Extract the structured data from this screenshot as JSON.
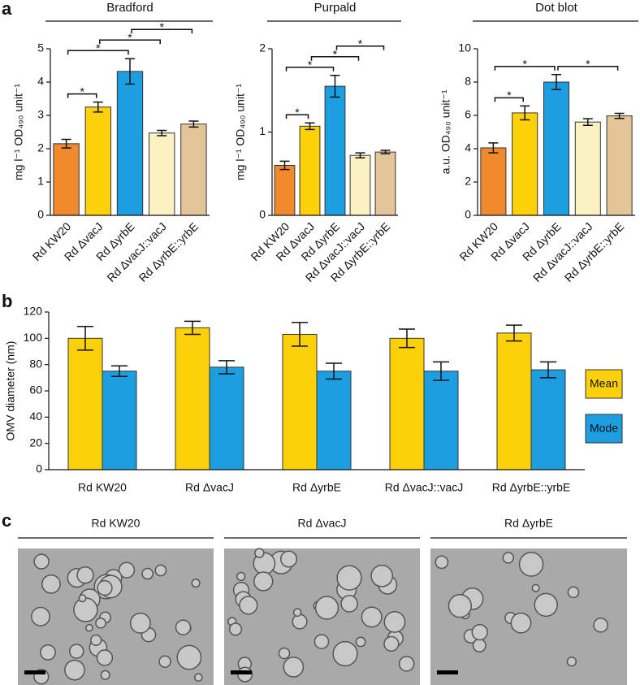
{
  "panel_labels": [
    "a",
    "b",
    "c"
  ],
  "chart_data": [
    {
      "type": "bar",
      "title": "Bradford",
      "ylabel": "mg l⁻¹ OD₄₉₀ unit⁻¹",
      "categories": [
        "Rd KW20",
        "Rd ΔvacJ",
        "Rd ΔyrbE",
        "Rd ΔvacJ::vacJ",
        "Rd ΔyrbE::yrbE"
      ],
      "values": [
        2.15,
        3.25,
        4.32,
        2.47,
        2.74
      ],
      "errors": [
        0.13,
        0.15,
        0.38,
        0.08,
        0.09
      ],
      "colors": [
        "#f08a2c",
        "#fdd10a",
        "#1c9ee0",
        "#fbf1c2",
        "#e3c597"
      ],
      "ylim": [
        0,
        5
      ],
      "yticks": [
        0,
        1,
        2,
        3,
        4,
        5
      ],
      "comparisons": [
        {
          "between": [
            0,
            1
          ],
          "label": "*"
        },
        {
          "between": [
            0,
            2
          ],
          "label": "*"
        },
        {
          "between": [
            1,
            3
          ],
          "label": "*"
        },
        {
          "between": [
            2,
            4
          ],
          "label": "*"
        }
      ]
    },
    {
      "type": "bar",
      "title": "Purpald",
      "ylabel": "mg l⁻¹ OD₄₉₀ unit⁻¹",
      "categories": [
        "Rd KW20",
        "Rd ΔvacJ",
        "Rd ΔyrbE",
        "Rd ΔvacJ::vacJ",
        "Rd ΔyrbE::yrbE"
      ],
      "values": [
        0.6,
        1.07,
        1.55,
        0.72,
        0.76
      ],
      "errors": [
        0.05,
        0.04,
        0.13,
        0.03,
        0.02
      ],
      "colors": [
        "#f08a2c",
        "#fdd10a",
        "#1c9ee0",
        "#fbf1c2",
        "#e3c597"
      ],
      "ylim": [
        0,
        2
      ],
      "yticks": [
        0,
        1,
        2
      ],
      "comparisons": [
        {
          "between": [
            0,
            1
          ],
          "label": "*"
        },
        {
          "between": [
            0,
            2
          ],
          "label": "*"
        },
        {
          "between": [
            1,
            3
          ],
          "label": "*"
        },
        {
          "between": [
            2,
            4
          ],
          "label": "*"
        }
      ]
    },
    {
      "type": "bar",
      "title": "Dot blot",
      "ylabel": "a.u. OD₄₉₀ unit⁻¹",
      "categories": [
        "Rd KW20",
        "Rd ΔvacJ",
        "Rd ΔyrbE",
        "Rd ΔvacJ::vacJ",
        "Rd ΔyrbE::yrbE"
      ],
      "values": [
        4.05,
        6.15,
        8.0,
        5.6,
        5.97
      ],
      "errors": [
        0.3,
        0.42,
        0.45,
        0.2,
        0.15
      ],
      "colors": [
        "#f08a2c",
        "#fdd10a",
        "#1c9ee0",
        "#fbf1c2",
        "#e3c597"
      ],
      "ylim": [
        0,
        10
      ],
      "yticks": [
        0,
        2,
        4,
        6,
        8,
        10
      ],
      "comparisons": [
        {
          "between": [
            0,
            1
          ],
          "label": "*"
        },
        {
          "between": [
            0,
            2
          ],
          "label": "*"
        },
        {
          "between": [
            2,
            4
          ],
          "label": "*"
        }
      ]
    },
    {
      "type": "grouped_bar",
      "ylabel": "OMV diameter (nm)",
      "categories": [
        "Rd KW20",
        "Rd ΔvacJ",
        "Rd ΔyrbE",
        "Rd ΔvacJ::vacJ",
        "Rd ΔyrbE::yrbE"
      ],
      "series": [
        {
          "name": "Mean",
          "color": "#fdd10a",
          "values": [
            100,
            108,
            103,
            100,
            104
          ],
          "errors": [
            9,
            5,
            9,
            7,
            6
          ]
        },
        {
          "name": "Mode",
          "color": "#1c9ee0",
          "values": [
            75,
            78,
            75,
            75,
            76
          ],
          "errors": [
            4,
            5,
            6,
            7,
            6
          ]
        }
      ],
      "ylim": [
        0,
        120
      ],
      "yticks": [
        0,
        20,
        40,
        60,
        80,
        100,
        120
      ],
      "legend": "right"
    }
  ],
  "micrographs": {
    "titles": [
      "Rd KW20",
      "Rd ΔvacJ",
      "Rd ΔyrbE"
    ]
  }
}
